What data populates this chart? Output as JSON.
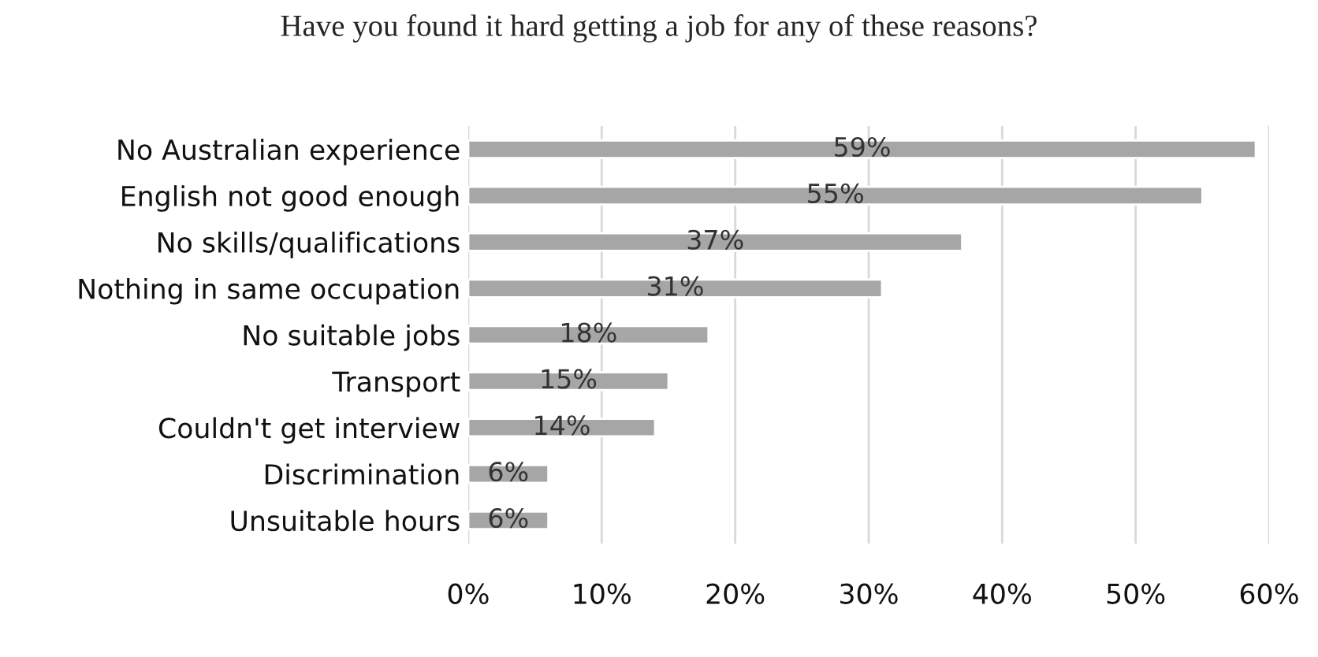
{
  "chart_data": {
    "type": "bar",
    "orientation": "horizontal",
    "title": "Have you found it hard getting a job for any of these reasons?",
    "categories": [
      "No Australian experience",
      "English not good enough",
      "No skills/qualifications",
      "Nothing in same occupation",
      "No suitable jobs",
      "Transport",
      "Couldn't get interview",
      "Discrimination",
      "Unsuitable hours"
    ],
    "values": [
      59,
      55,
      37,
      31,
      18,
      15,
      14,
      6,
      6
    ],
    "value_labels": [
      "59%",
      "55%",
      "37%",
      "31%",
      "18%",
      "15%",
      "14%",
      "6%",
      "6%"
    ],
    "color": "#a6a6a6",
    "xlim": [
      0,
      60
    ],
    "xticks": [
      {
        "value": 0,
        "label": "0%"
      },
      {
        "value": 10,
        "label": "10%"
      },
      {
        "value": 20,
        "label": "20%"
      },
      {
        "value": 30,
        "label": "30%"
      },
      {
        "value": 40,
        "label": "40%"
      },
      {
        "value": 50,
        "label": "50%"
      },
      {
        "value": 60,
        "label": "60%"
      }
    ],
    "grid": "x"
  }
}
